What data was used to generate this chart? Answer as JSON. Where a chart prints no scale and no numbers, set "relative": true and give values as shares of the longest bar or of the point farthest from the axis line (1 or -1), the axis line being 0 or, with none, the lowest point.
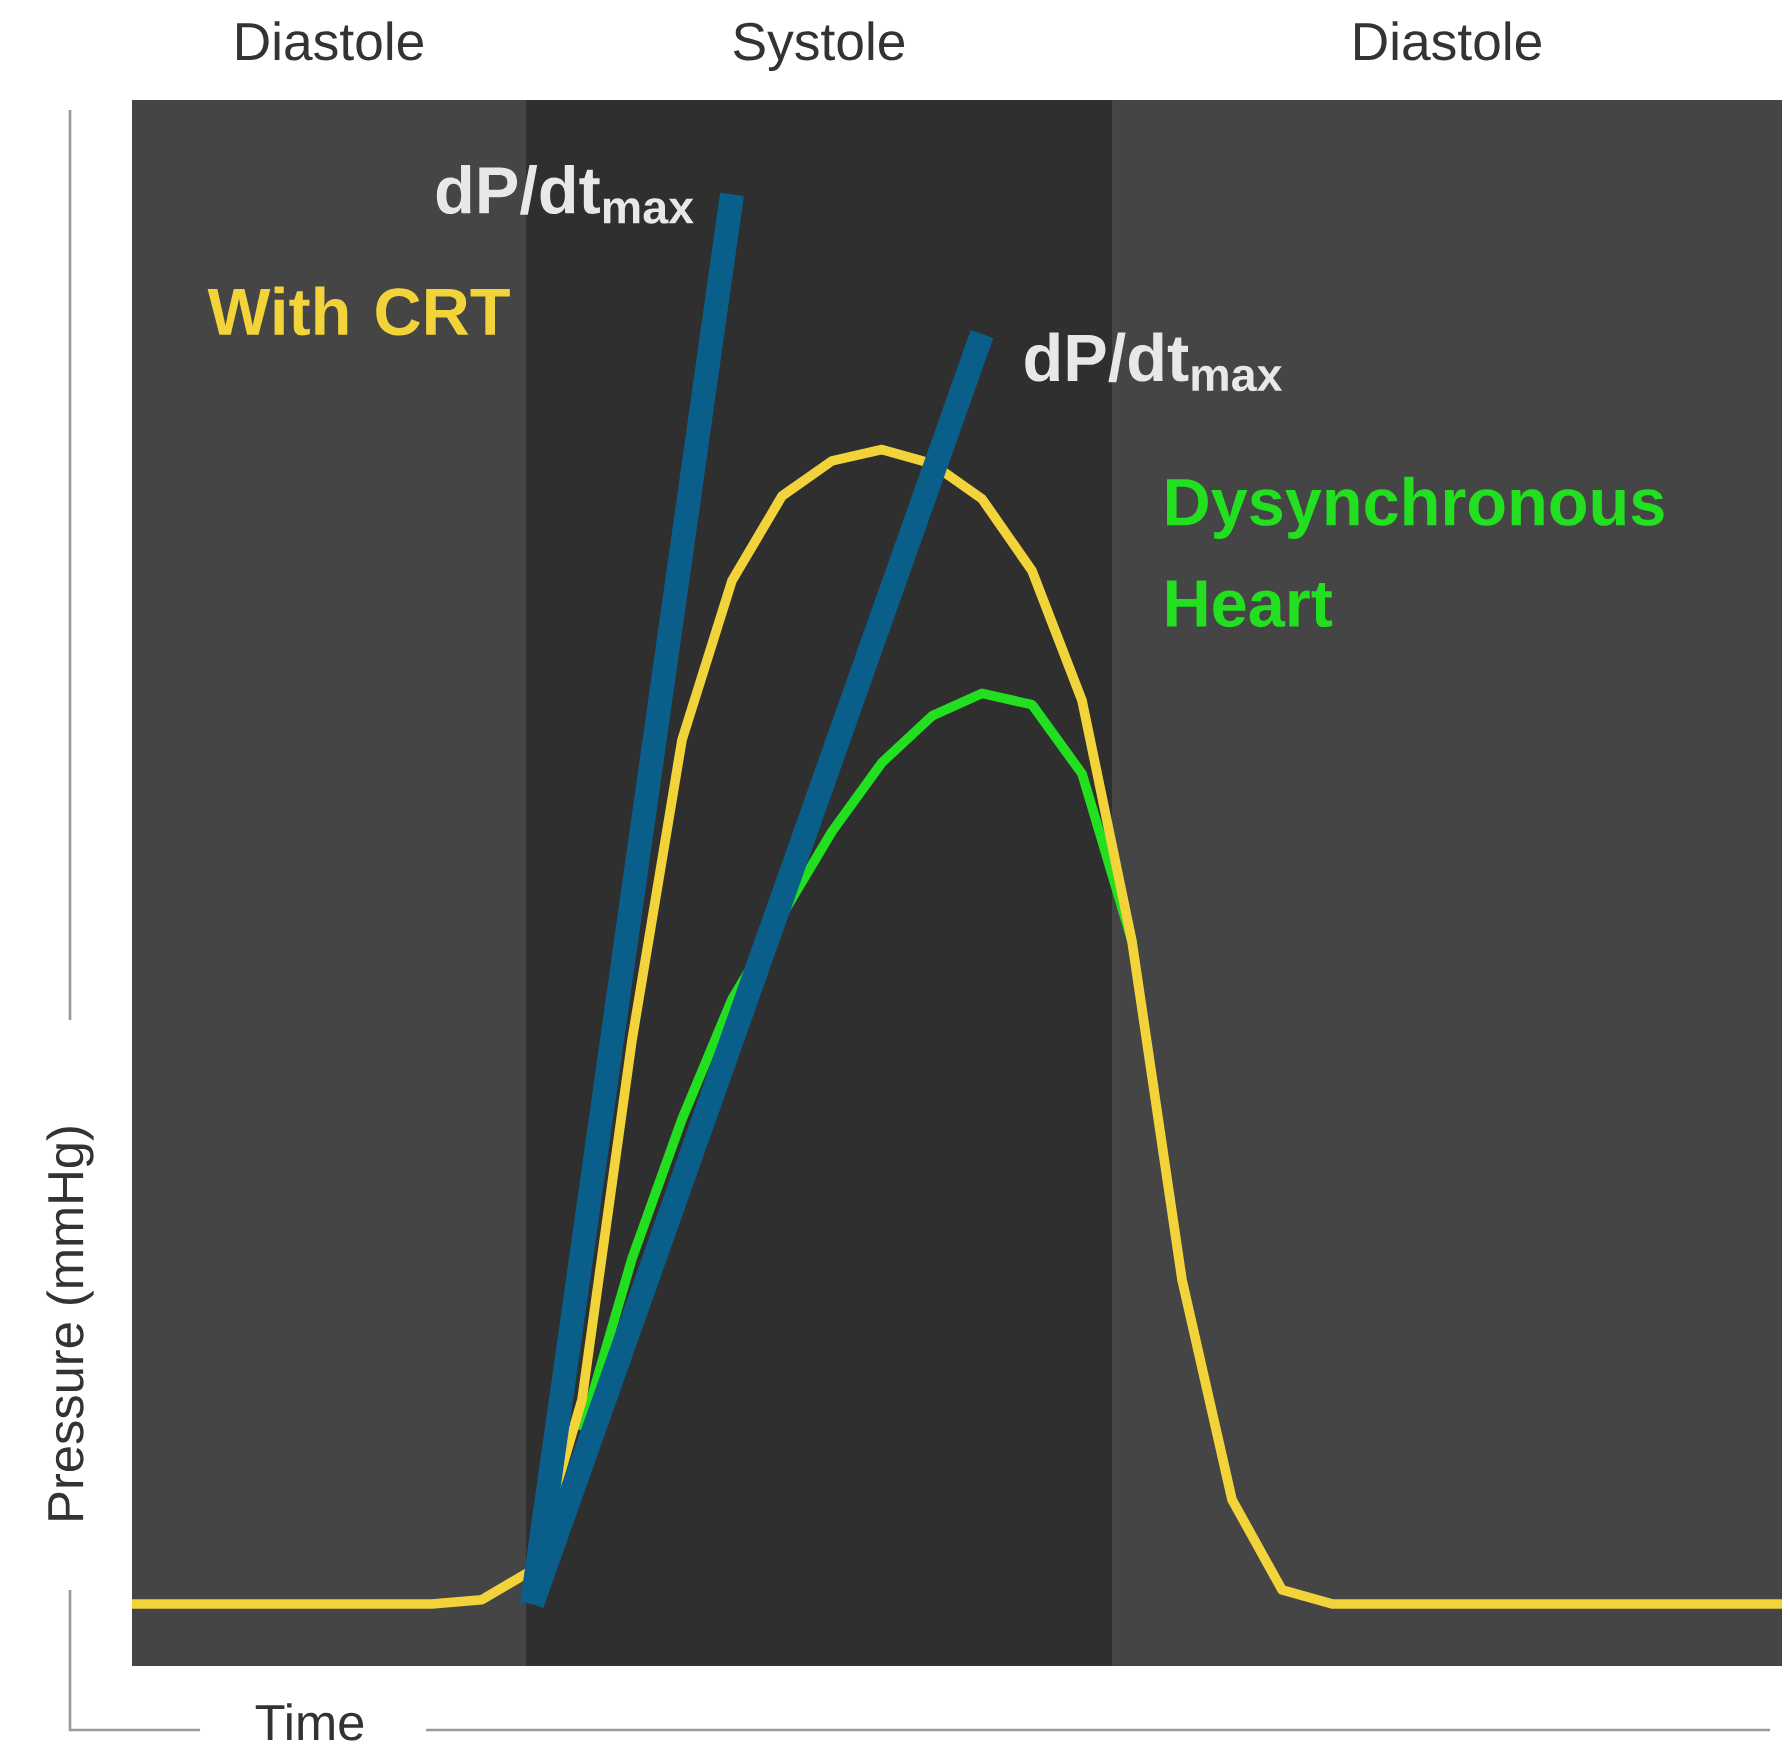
{
  "chart_data": {
    "type": "line",
    "relative": true,
    "xlabel": "Time",
    "ylabel": "Pressure (mmHg)",
    "categories": [
      null,
      null,
      null,
      null,
      null,
      null,
      null,
      null,
      null,
      null,
      null,
      null,
      null,
      null,
      null,
      null,
      null,
      null,
      null,
      null,
      null,
      null,
      null,
      null,
      null,
      null,
      null,
      null,
      null,
      null,
      null,
      null,
      null,
      null
    ],
    "series": [
      {
        "name": "Dysynchronous Heart",
        "color": "#22e01f",
        "values": [
          null,
          null,
          null,
          null,
          null,
          null,
          null,
          null,
          null,
          0.123,
          0.245,
          0.344,
          0.429,
          null,
          0.548,
          0.597,
          0.63,
          0.646,
          0.638,
          0.589,
          0.47,
          null,
          null,
          null,
          null,
          null,
          null,
          null,
          null,
          null,
          null,
          null,
          null,
          null
        ]
      },
      {
        "name": "With CRT",
        "color": "#f2d43a",
        "values": [
          0,
          0,
          0,
          0,
          0,
          0,
          0,
          0.003,
          0.024,
          0.145,
          0.4,
          0.613,
          0.726,
          0.786,
          0.811,
          0.819,
          0.809,
          0.784,
          0.733,
          0.641,
          0.47,
          0.23,
          0.074,
          0.01,
          0,
          0,
          0,
          0,
          0,
          0,
          0,
          0,
          0,
          0
        ]
      },
      {
        "color": "#0a5f8a",
        "values": [
          null,
          null,
          null,
          null,
          null,
          null,
          null,
          null,
          0,
          null,
          null,
          null,
          1.0,
          null,
          null,
          null,
          null,
          null,
          null,
          null,
          null,
          null,
          null,
          null,
          null,
          null,
          null,
          null,
          null,
          null,
          null,
          null,
          null,
          null
        ]
      },
      {
        "color": "#0a5f8a",
        "values": [
          null,
          null,
          null,
          null,
          null,
          null,
          null,
          null,
          0,
          null,
          null,
          null,
          null,
          null,
          null,
          null,
          null,
          0.901,
          null,
          null,
          null,
          null,
          null,
          null,
          null,
          null,
          null,
          null,
          null,
          null,
          null,
          null,
          null,
          null
        ]
      }
    ],
    "annotations": [
      "Diastole",
      "Systole",
      "Diastole",
      "dP/dt$_{max}$",
      "dP/dt$_{max}$"
    ]
  }
}
